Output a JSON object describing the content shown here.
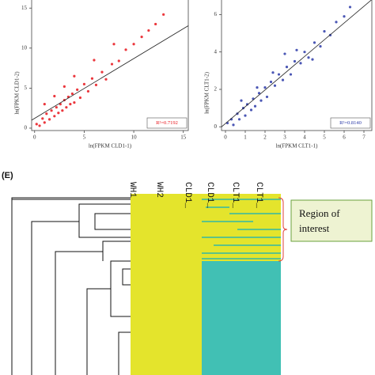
{
  "chart_data": [
    {
      "type": "scatter",
      "color": "#e8141b",
      "x_label": "ln(FPKM CLD1-1)",
      "y_label": "ln(FPKM CLD1-2)",
      "annotation": "R²=0.7192",
      "xlim": [
        -0.3,
        15.5
      ],
      "ylim": [
        -0.3,
        17
      ],
      "xticks": [
        0,
        5,
        10,
        15
      ],
      "yticks": [
        0,
        5,
        10,
        15
      ],
      "x": [
        0.2,
        0.5,
        0.8,
        1,
        1.2,
        1.5,
        1.7,
        2,
        2.2,
        2.4,
        2.6,
        2.8,
        3,
        3.2,
        3.4,
        3.6,
        3.8,
        4,
        4.3,
        4.6,
        5,
        5.4,
        5.8,
        6.2,
        6.8,
        7.2,
        7.8,
        8.5,
        9.2,
        10,
        10.8,
        11.5,
        12.2,
        13,
        6,
        8,
        4,
        3,
        2,
        1
      ],
      "values": [
        0.5,
        0.3,
        1.2,
        0.7,
        1.8,
        1.1,
        2.2,
        1.5,
        2.6,
        1.9,
        3,
        2.2,
        3.5,
        2.6,
        3.9,
        3,
        4.3,
        3.2,
        4.8,
        3.8,
        5.5,
        4.6,
        6.2,
        5.4,
        7,
        6.1,
        8,
        8.4,
        9.8,
        10.5,
        11.4,
        12.2,
        13,
        14.2,
        8.5,
        10.5,
        6.5,
        5.2,
        4,
        3
      ],
      "fit_line": {
        "x": [
          -0.3,
          15.5
        ],
        "y": [
          1,
          12.8
        ]
      }
    },
    {
      "type": "scatter",
      "color": "#2b3aa8",
      "x_label": "ln(FPKM CLT1-1)",
      "y_label": "ln(FPKM CLT1-2)",
      "annotation": "R²=0.8140",
      "xlim": [
        -0.2,
        7.4
      ],
      "ylim": [
        -0.2,
        7.2
      ],
      "xticks": [
        0,
        1,
        2,
        3,
        4,
        5,
        6,
        7
      ],
      "yticks": [
        0,
        2,
        4,
        6
      ],
      "x": [
        0.1,
        0.3,
        0.4,
        0.6,
        0.7,
        0.9,
        1,
        1.1,
        1.3,
        1.4,
        1.5,
        1.7,
        1.8,
        2,
        2.1,
        2.3,
        2.5,
        2.7,
        2.9,
        3.1,
        3.3,
        3.5,
        3.8,
        4,
        4.2,
        4.5,
        4.8,
        5,
        5.3,
        5.6,
        6,
        6.3,
        3,
        3.6,
        2.4,
        1.6,
        0.8,
        4.4
      ],
      "values": [
        0.2,
        0.4,
        0.1,
        0.7,
        0.4,
        1,
        0.6,
        1.2,
        0.9,
        1.5,
        1.1,
        1.8,
        1.4,
        2.1,
        1.6,
        2.4,
        2.2,
        2.8,
        2.5,
        3.2,
        2.8,
        3.5,
        3.4,
        4,
        3.7,
        4.5,
        4.3,
        5.1,
        4.9,
        5.6,
        5.9,
        6.4,
        3.9,
        4.1,
        2.9,
        2.1,
        1.4,
        3.6
      ],
      "fit_line": {
        "x": [
          -0.2,
          7.4
        ],
        "y": [
          0,
          6.8
        ]
      }
    }
  ],
  "heatmap": {
    "label": "(E)",
    "columns": [
      "WH1",
      "WH2",
      "CLD1_",
      "CLD1_",
      "CLT1_",
      "CLT1_"
    ],
    "annotation": [
      "Region of",
      "interest"
    ]
  }
}
